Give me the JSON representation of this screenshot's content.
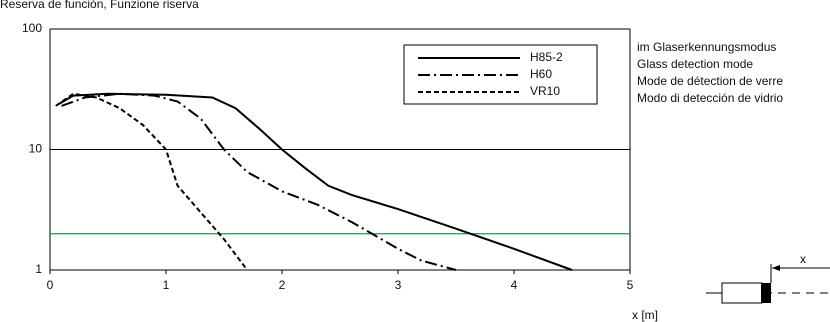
{
  "chart_data": {
    "type": "line",
    "title": "Reserva de función, Funzione riserva",
    "x_label": "x [m]",
    "annotations": [
      "im Glaserkennungsmodus",
      "Glass detection mode",
      "Mode de détection de verre",
      "Modo di detección de vidrio"
    ],
    "log_y": true,
    "grid": true,
    "legend": "upper right",
    "xlim": [
      0,
      5
    ],
    "xticks": [
      0,
      1,
      2,
      3,
      4,
      5
    ],
    "ylim": [
      1,
      100
    ],
    "yticks": [
      1,
      10,
      100
    ],
    "reference_lines": [
      {
        "value": 2,
        "color": "#1f9a4a"
      }
    ],
    "series": [
      {
        "name": "H85-2",
        "color": "#000000",
        "dash": "solid",
        "x": [
          0.08,
          0.2,
          0.5,
          1.0,
          1.4,
          1.6,
          1.8,
          2.0,
          2.2,
          2.4,
          2.6,
          3.0,
          3.5,
          4.0,
          4.5
        ],
        "values": [
          24,
          28,
          29,
          28.5,
          27,
          22,
          15,
          10,
          7,
          5,
          4.2,
          3.2,
          2.2,
          1.5,
          1.0
        ]
      },
      {
        "name": "H60",
        "color": "#000000",
        "dash": "dashdot",
        "x": [
          0.1,
          0.3,
          0.6,
          0.9,
          1.1,
          1.3,
          1.5,
          1.7,
          2.0,
          2.3,
          2.6,
          3.0,
          3.2,
          3.5
        ],
        "values": [
          23,
          27,
          29,
          28,
          25,
          18,
          10,
          6.5,
          4.5,
          3.5,
          2.5,
          1.5,
          1.2,
          1.0
        ]
      },
      {
        "name": "VR10",
        "color": "#000000",
        "dash": "dashed",
        "x": [
          0.05,
          0.2,
          0.4,
          0.6,
          0.8,
          1.0,
          1.1,
          1.3,
          1.5,
          1.7
        ],
        "values": [
          23,
          29,
          27,
          22,
          16,
          10,
          5,
          3,
          1.8,
          1.0
        ]
      }
    ]
  },
  "sensor_diagram": {
    "label": "x"
  }
}
